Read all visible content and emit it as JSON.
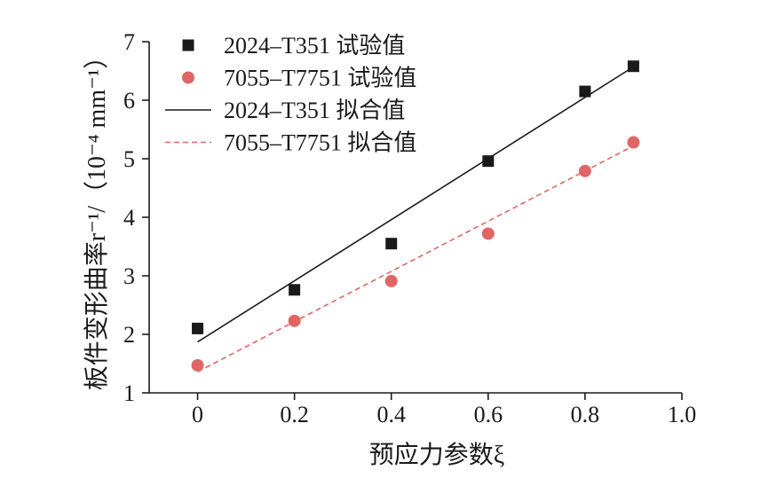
{
  "chart_data": {
    "type": "scatter",
    "xlabel": "预应力参数ξ",
    "ylabel": "板件变形曲率r⁻¹/（10⁻⁴ mm⁻¹）",
    "xlim": [
      -0.1,
      1.0
    ],
    "ylim": [
      1,
      7
    ],
    "xticks": [
      0,
      0.2,
      0.4,
      0.6,
      0.8,
      1.0
    ],
    "xtick_labels": [
      "0",
      "0.2",
      "0.4",
      "0.6",
      "0.8",
      "1.0"
    ],
    "yticks": [
      1,
      2,
      3,
      4,
      5,
      6,
      7
    ],
    "ytick_labels": [
      "1",
      "2",
      "3",
      "4",
      "5",
      "6",
      "7"
    ],
    "grid": false,
    "legend_position": "top-left",
    "series": [
      {
        "name": "2024–T351 试验值",
        "kind": "scatter",
        "marker": "square",
        "color": "#1a1a1a",
        "x": [
          0,
          0.2,
          0.4,
          0.6,
          0.8,
          0.9
        ],
        "y": [
          2.1,
          2.76,
          3.55,
          4.96,
          6.15,
          6.58
        ]
      },
      {
        "name": "7055–T7751 试验值",
        "kind": "scatter",
        "marker": "circle",
        "color": "#e06666",
        "x": [
          0,
          0.2,
          0.4,
          0.6,
          0.8,
          0.9
        ],
        "y": [
          1.47,
          2.23,
          2.91,
          3.72,
          4.79,
          5.28
        ]
      },
      {
        "name": "2024–T351 拟合值",
        "kind": "line",
        "dash": "solid",
        "color": "#1a1a1a",
        "x": [
          0,
          0.9
        ],
        "y": [
          1.87,
          6.57
        ]
      },
      {
        "name": "7055–T7751 拟合值",
        "kind": "line",
        "dash": "dashed",
        "color": "#e06666",
        "x": [
          0,
          0.9
        ],
        "y": [
          1.36,
          5.22
        ]
      }
    ]
  }
}
